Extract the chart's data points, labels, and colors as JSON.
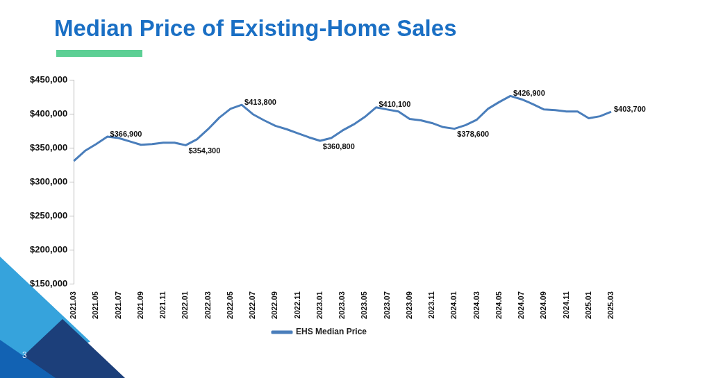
{
  "chart_data": {
    "type": "line",
    "title": "Median Price of Existing-Home Sales",
    "categories": [
      "2021.03",
      null,
      "2021.05",
      null,
      "2021.07",
      null,
      "2021.09",
      null,
      "2021.11",
      null,
      "2022.01",
      null,
      "2022.03",
      null,
      "2022.05",
      null,
      "2022.07",
      null,
      "2022.09",
      null,
      "2022.11",
      null,
      "2023.01",
      null,
      "2023.03",
      null,
      "2023.05",
      null,
      "2023.07",
      null,
      "2023.09",
      null,
      "2023.11",
      null,
      "2024.01",
      null,
      "2024.03",
      null,
      "2024.05",
      null,
      "2024.07",
      null,
      "2024.09",
      null,
      "2024.11",
      null,
      "2025.01",
      null,
      "2025.03"
    ],
    "series": [
      {
        "name": "EHS Median Price",
        "color": "#4a7ebb",
        "values": [
          331000,
          346000,
          356000,
          366900,
          365000,
          360000,
          355000,
          356000,
          358000,
          358000,
          354300,
          363000,
          378000,
          395000,
          408000,
          413800,
          400000,
          391000,
          383000,
          378000,
          372000,
          366000,
          360800,
          365000,
          376000,
          385000,
          396000,
          410100,
          407000,
          404000,
          393000,
          391000,
          387000,
          381000,
          378600,
          384000,
          392000,
          408000,
          418000,
          426900,
          422000,
          415000,
          407000,
          406000,
          404000,
          404000,
          394000,
          397000,
          403700
        ],
        "value_labels": [
          null,
          null,
          null,
          "$366,900",
          null,
          null,
          null,
          null,
          null,
          null,
          "$354,300",
          null,
          null,
          null,
          null,
          "$413,800",
          null,
          null,
          null,
          null,
          null,
          null,
          "$360,800",
          null,
          null,
          null,
          null,
          "$410,100",
          null,
          null,
          null,
          null,
          null,
          null,
          "$378,600",
          null,
          null,
          null,
          null,
          "$426,900",
          null,
          null,
          null,
          null,
          null,
          null,
          null,
          null,
          "$403,700"
        ]
      }
    ],
    "ylim": [
      150000,
      450000
    ],
    "yticks": [
      {
        "value": 150000,
        "label": "$150,000"
      },
      {
        "value": 200000,
        "label": "$200,000"
      },
      {
        "value": 250000,
        "label": "$250,000"
      },
      {
        "value": 300000,
        "label": "$300,000"
      },
      {
        "value": 350000,
        "label": "$350,000"
      },
      {
        "value": 400000,
        "label": "$400,000"
      },
      {
        "value": 450000,
        "label": "$450,000"
      }
    ],
    "grid": false,
    "legend": "bottom",
    "marker": "none",
    "line_style": "solid",
    "annotations": [
      "3"
    ]
  }
}
